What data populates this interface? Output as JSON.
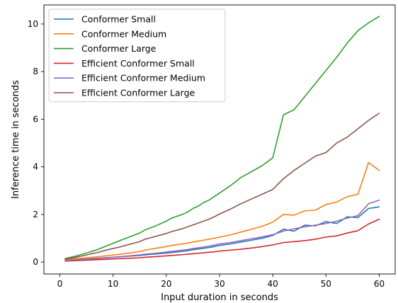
{
  "chart_data": {
    "type": "line",
    "title": "",
    "xlabel": "Input duration in seconds",
    "ylabel": "Inference time in seconds",
    "xlim": [
      -3,
      63
    ],
    "ylim": [
      -0.5,
      10.8
    ],
    "xticks": [
      0,
      10,
      20,
      30,
      40,
      50,
      60
    ],
    "yticks": [
      0,
      2,
      4,
      6,
      8,
      10
    ],
    "grid": false,
    "legend_position": "top-left",
    "x": [
      1,
      3,
      5,
      7,
      9,
      11,
      13,
      15,
      16,
      18,
      20,
      21,
      23,
      24,
      25,
      26,
      27,
      28,
      29,
      30,
      32,
      34,
      36,
      38,
      40,
      42,
      44,
      46,
      48,
      50,
      52,
      54,
      56,
      58,
      60
    ],
    "series": [
      {
        "name": "Conformer Small",
        "color": "#1f77b4",
        "values": [
          0.07,
          0.1,
          0.13,
          0.16,
          0.19,
          0.22,
          0.25,
          0.28,
          0.3,
          0.34,
          0.38,
          0.4,
          0.45,
          0.48,
          0.52,
          0.55,
          0.58,
          0.61,
          0.65,
          0.7,
          0.76,
          0.84,
          0.92,
          1.0,
          1.12,
          1.38,
          1.3,
          1.55,
          1.52,
          1.7,
          1.62,
          1.9,
          1.87,
          2.25,
          2.32
        ]
      },
      {
        "name": "Conformer Medium",
        "color": "#ff7f0e",
        "values": [
          0.1,
          0.14,
          0.18,
          0.22,
          0.27,
          0.32,
          0.38,
          0.44,
          0.5,
          0.58,
          0.65,
          0.7,
          0.76,
          0.8,
          0.84,
          0.88,
          0.92,
          0.96,
          1.0,
          1.05,
          1.14,
          1.26,
          1.38,
          1.5,
          1.68,
          2.0,
          1.97,
          2.15,
          2.18,
          2.42,
          2.52,
          2.75,
          2.85,
          4.18,
          3.85
        ]
      },
      {
        "name": "Conformer Large",
        "color": "#2ca02c",
        "values": [
          0.15,
          0.25,
          0.38,
          0.52,
          0.7,
          0.88,
          1.05,
          1.22,
          1.35,
          1.52,
          1.72,
          1.85,
          2.0,
          2.1,
          2.25,
          2.35,
          2.5,
          2.6,
          2.75,
          2.9,
          3.2,
          3.55,
          3.8,
          4.05,
          4.38,
          6.18,
          6.4,
          6.95,
          7.5,
          8.05,
          8.6,
          9.2,
          9.72,
          10.05,
          10.32
        ]
      },
      {
        "name": "Efficient Conformer Small",
        "color": "#d62728",
        "values": [
          0.04,
          0.06,
          0.08,
          0.1,
          0.12,
          0.14,
          0.16,
          0.18,
          0.2,
          0.23,
          0.26,
          0.28,
          0.31,
          0.33,
          0.35,
          0.37,
          0.39,
          0.41,
          0.43,
          0.46,
          0.5,
          0.54,
          0.59,
          0.65,
          0.72,
          0.82,
          0.86,
          0.9,
          0.96,
          1.05,
          1.1,
          1.22,
          1.32,
          1.6,
          1.8
        ]
      },
      {
        "name": "Efficient Conformer Medium",
        "color": "#9467bd",
        "values": [
          0.06,
          0.09,
          0.12,
          0.15,
          0.18,
          0.22,
          0.26,
          0.3,
          0.33,
          0.37,
          0.42,
          0.45,
          0.5,
          0.53,
          0.57,
          0.6,
          0.63,
          0.67,
          0.71,
          0.76,
          0.82,
          0.9,
          0.98,
          1.06,
          1.15,
          1.3,
          1.4,
          1.48,
          1.55,
          1.62,
          1.72,
          1.85,
          1.95,
          2.45,
          2.6
        ]
      },
      {
        "name": "Efficient Conformer Large",
        "color": "#8c564b",
        "values": [
          0.12,
          0.2,
          0.3,
          0.4,
          0.52,
          0.62,
          0.74,
          0.86,
          0.96,
          1.08,
          1.2,
          1.28,
          1.4,
          1.48,
          1.56,
          1.64,
          1.72,
          1.8,
          1.9,
          2.02,
          2.22,
          2.45,
          2.65,
          2.85,
          3.05,
          3.5,
          3.85,
          4.15,
          4.45,
          4.6,
          5.0,
          5.25,
          5.6,
          5.95,
          6.25
        ]
      }
    ]
  }
}
